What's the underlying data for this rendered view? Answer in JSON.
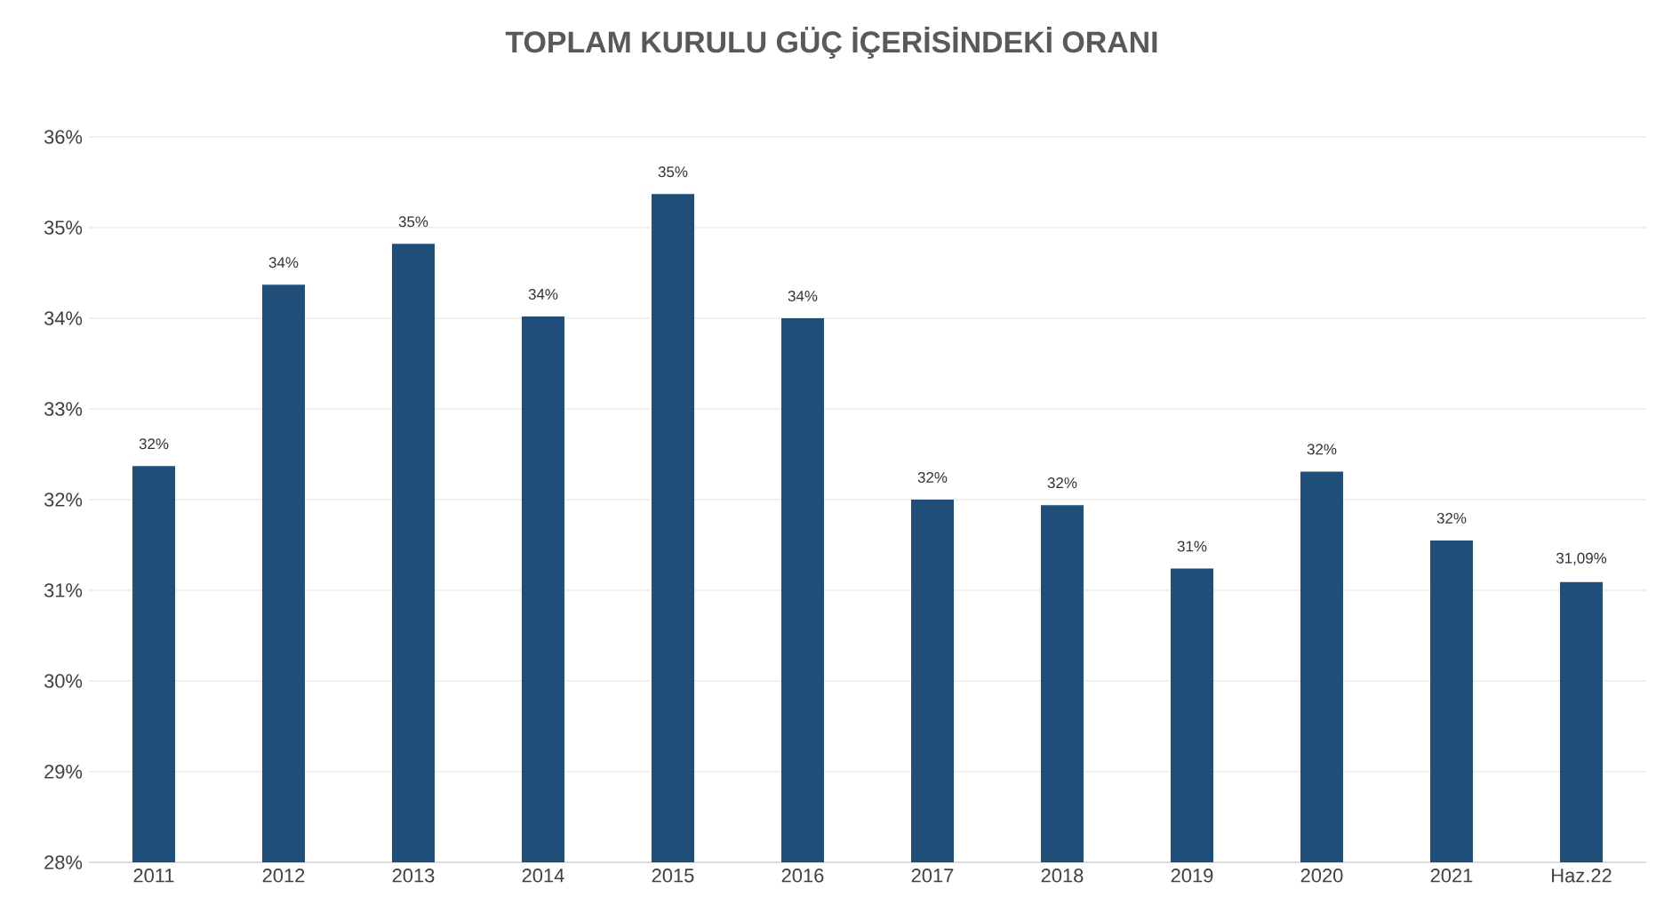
{
  "chart_data": {
    "type": "bar",
    "title": "TOPLAM KURULU GÜÇ İÇERİSİNDEKİ ORANI",
    "categories": [
      "2011",
      "2012",
      "2013",
      "2014",
      "2015",
      "2016",
      "2017",
      "2018",
      "2019",
      "2020",
      "2021",
      "Haz.22"
    ],
    "values": [
      32.37,
      34.37,
      34.82,
      34.02,
      35.37,
      34.0,
      32.0,
      31.94,
      31.24,
      32.31,
      31.55,
      31.09
    ],
    "value_labels": [
      "32%",
      "34%",
      "35%",
      "34%",
      "35%",
      "34%",
      "32%",
      "32%",
      "31%",
      "32%",
      "32%",
      "31,09%"
    ],
    "color": "#1f4e79",
    "ylim": [
      28,
      36
    ],
    "yticks": [
      {
        "value": 28,
        "label": "28%"
      },
      {
        "value": 29,
        "label": "29%"
      },
      {
        "value": 30,
        "label": "30%"
      },
      {
        "value": 31,
        "label": "31%"
      },
      {
        "value": 32,
        "label": "32%"
      },
      {
        "value": 33,
        "label": "33%"
      },
      {
        "value": 34,
        "label": "34%"
      },
      {
        "value": 35,
        "label": "35%"
      },
      {
        "value": 36,
        "label": "36%"
      }
    ],
    "grid": "y"
  }
}
